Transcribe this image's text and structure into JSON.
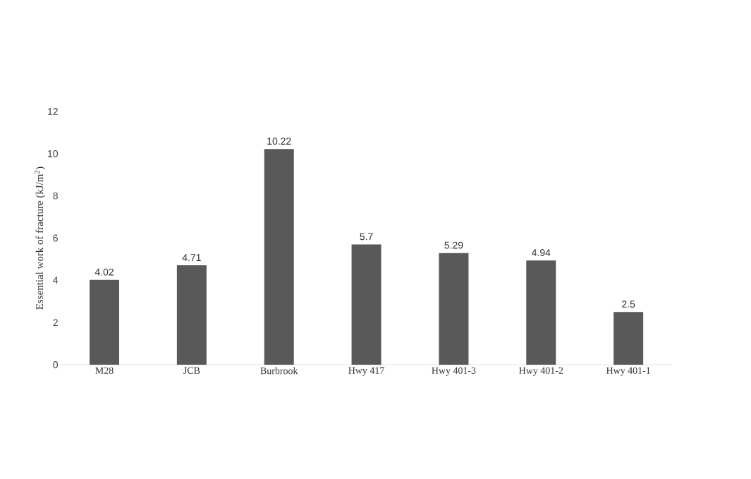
{
  "chart_data": {
    "type": "bar",
    "ylabel": "Essential work of fracture (kJ/m$^{2}$)",
    "categories": [
      "M28",
      "JCB",
      "Burbrook",
      "Hwy 417",
      "Hwy 401-3",
      "Hwy 401-2",
      "Hwy 401-1"
    ],
    "values": [
      4.02,
      4.71,
      10.22,
      5.7,
      5.29,
      4.94,
      2.5
    ],
    "color": "#595959",
    "ylim": [
      0,
      12
    ],
    "yticks": [
      0,
      2,
      4,
      6,
      8,
      10,
      12
    ],
    "data_labels": true
  }
}
